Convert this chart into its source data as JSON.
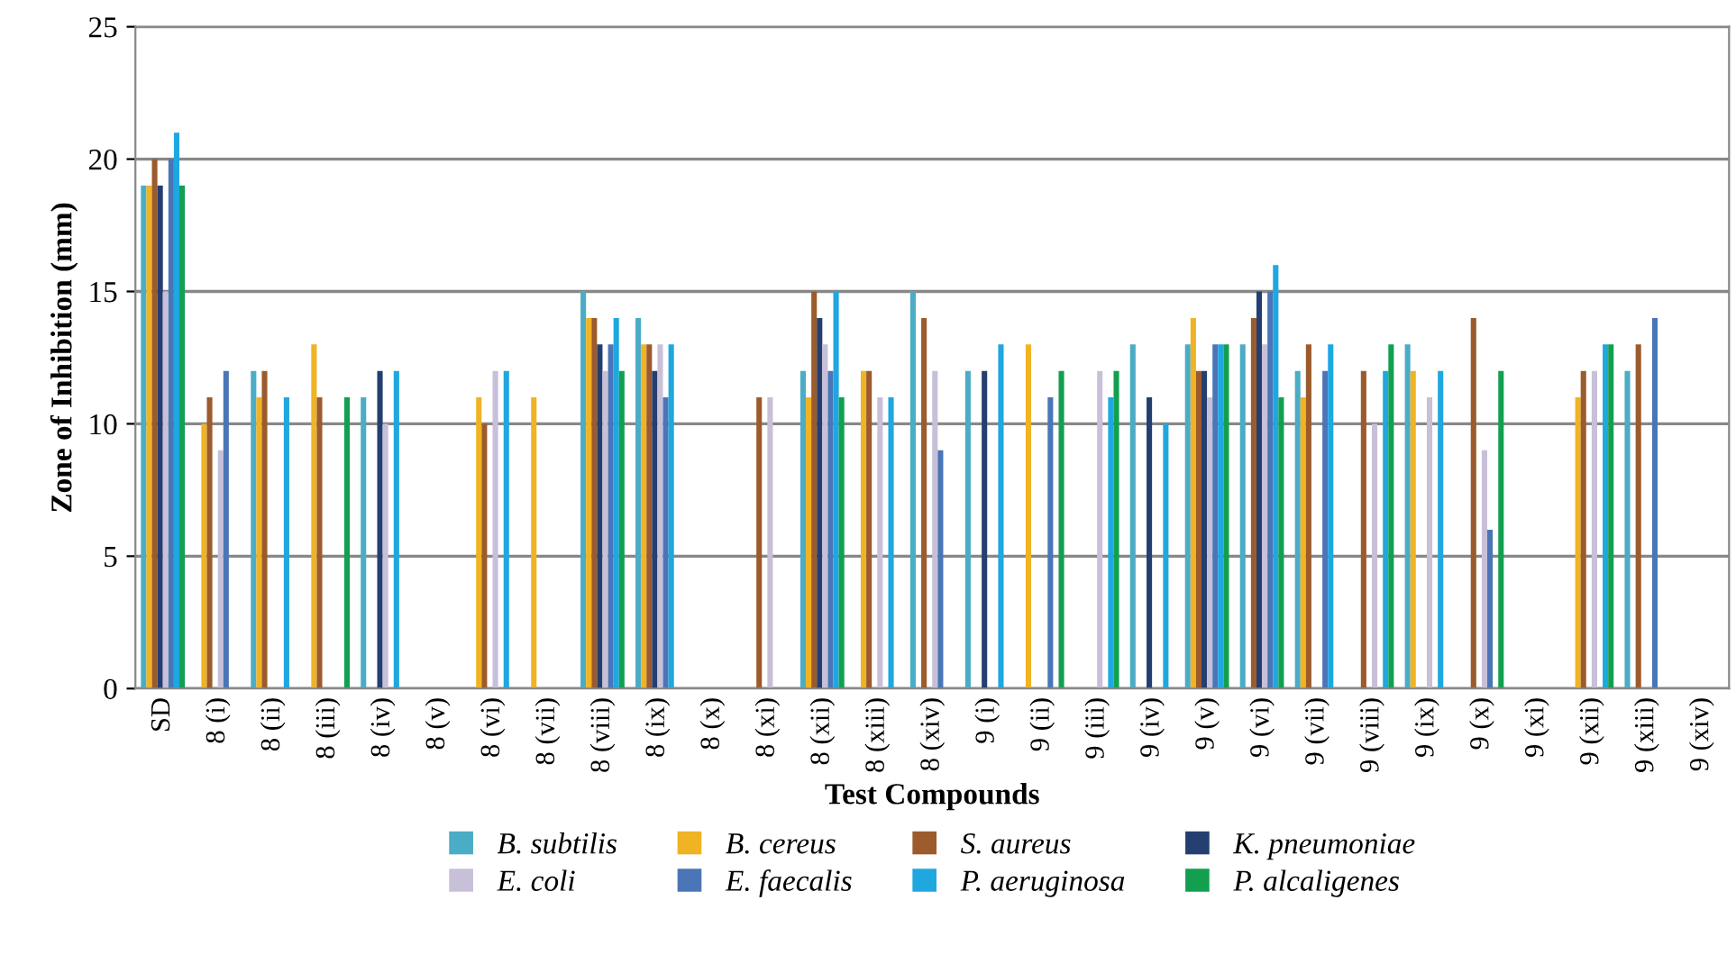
{
  "chart_data": {
    "type": "bar",
    "xlabel": "Test Compounds",
    "ylabel": "Zone of Inhibition (mm)",
    "categories": [
      "SD",
      "8 (i)",
      "8 (ii)",
      "8 (iii)",
      "8 (iv)",
      "8 (v)",
      "8 (vi)",
      "8 (vii)",
      "8 (viii)",
      "8 (ix)",
      "8 (x)",
      "8 (xi)",
      "8 (xii)",
      "8 (xiii)",
      "8 (xiv)",
      "9 (i)",
      "9 (ii)",
      "9 (iii)",
      "9 (iv)",
      "9 (v)",
      "9 (vi)",
      "9 (vii)",
      "9 (viii)",
      "9 (ix)",
      "9 (x)",
      "9 (xi)",
      "9 (xii)",
      "9 (xiii)",
      "9 (xiv)"
    ],
    "series": [
      {
        "name": "B. subtilis",
        "color": "#4bacc6",
        "values": [
          19,
          0,
          12,
          0,
          11,
          0,
          0,
          0,
          15,
          14,
          0,
          0,
          12,
          0,
          15,
          12,
          0,
          0,
          13,
          13,
          13,
          12,
          0,
          13,
          0,
          0,
          0,
          12,
          0
        ]
      },
      {
        "name": "B. cereus",
        "color": "#f0b323",
        "values": [
          19,
          10,
          11,
          13,
          0,
          0,
          11,
          11,
          14,
          13,
          0,
          0,
          11,
          12,
          0,
          0,
          13,
          0,
          0,
          14,
          0,
          11,
          0,
          12,
          0,
          0,
          11,
          0,
          0
        ]
      },
      {
        "name": "S. aureus",
        "color": "#9c5b2c",
        "values": [
          20,
          11,
          12,
          11,
          0,
          0,
          10,
          0,
          14,
          13,
          0,
          11,
          15,
          12,
          14,
          0,
          0,
          0,
          0,
          12,
          14,
          13,
          12,
          0,
          14,
          0,
          12,
          13,
          0
        ]
      },
      {
        "name": "K. pneumoniae",
        "color": "#243f6f",
        "values": [
          19,
          0,
          0,
          0,
          12,
          0,
          0,
          0,
          13,
          12,
          0,
          0,
          14,
          0,
          0,
          12,
          0,
          0,
          11,
          12,
          15,
          0,
          0,
          0,
          0,
          0,
          0,
          0,
          0
        ]
      },
      {
        "name": "E. coli",
        "color": "#c8c0d8",
        "values": [
          15,
          9,
          0,
          0,
          10,
          0,
          12,
          0,
          12,
          13,
          0,
          11,
          13,
          11,
          12,
          0,
          0,
          12,
          0,
          11,
          13,
          0,
          10,
          11,
          9,
          0,
          12,
          0,
          0
        ]
      },
      {
        "name": "E. faecalis",
        "color": "#4a76b8",
        "values": [
          20,
          12,
          0,
          0,
          0,
          0,
          0,
          0,
          13,
          11,
          0,
          0,
          12,
          0,
          9,
          0,
          11,
          0,
          0,
          13,
          15,
          12,
          0,
          0,
          6,
          0,
          0,
          14,
          0
        ]
      },
      {
        "name": "P. aeruginosa",
        "color": "#1fa7e0",
        "values": [
          21,
          0,
          11,
          0,
          12,
          0,
          12,
          0,
          14,
          13,
          0,
          0,
          15,
          11,
          0,
          13,
          0,
          11,
          10,
          13,
          16,
          13,
          12,
          12,
          0,
          0,
          13,
          0,
          0
        ]
      },
      {
        "name": "P. alcaligenes",
        "color": "#12a050",
        "values": [
          19,
          0,
          0,
          11,
          0,
          0,
          0,
          0,
          12,
          0,
          0,
          0,
          11,
          0,
          0,
          0,
          12,
          12,
          0,
          13,
          11,
          0,
          13,
          0,
          12,
          0,
          13,
          0,
          0
        ]
      }
    ],
    "ylim": [
      0,
      25
    ],
    "yticks": [
      0,
      5,
      10,
      15,
      20,
      25
    ],
    "grid": "y",
    "legend": "bottom"
  }
}
